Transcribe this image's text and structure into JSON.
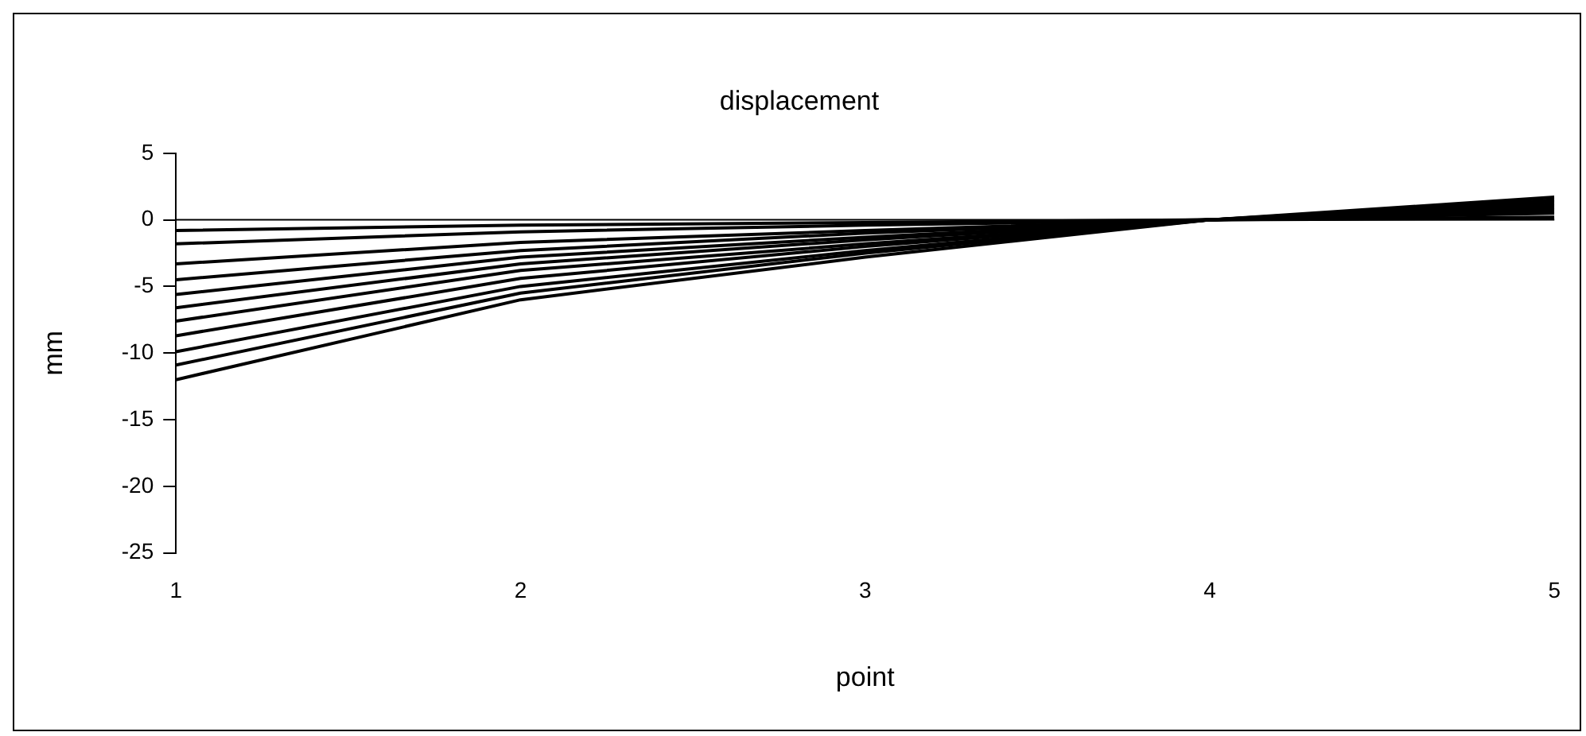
{
  "chart_data": {
    "type": "line",
    "title": "displacement",
    "xlabel": "point",
    "ylabel": "mm",
    "x": [
      1,
      2,
      3,
      4,
      5
    ],
    "xlim": [
      1,
      5
    ],
    "xticks": [
      1,
      2,
      3,
      4,
      5
    ],
    "ylim": [
      -25,
      5
    ],
    "yticks": [
      -25,
      -20,
      -15,
      -10,
      -5,
      0,
      5
    ],
    "grid": false,
    "legend": false,
    "marker": "none",
    "line_style": "solid",
    "ref_lines": [
      {
        "axis": "y",
        "value": 0,
        "color": "#000000"
      }
    ],
    "series": [
      {
        "color": "#000000",
        "values": [
          -0.8,
          -0.4,
          -0.2,
          0,
          0.1
        ]
      },
      {
        "color": "#000000",
        "values": [
          -1.8,
          -0.9,
          -0.4,
          0,
          0.2
        ]
      },
      {
        "color": "#000000",
        "values": [
          -3.3,
          -1.7,
          -0.8,
          0,
          0.5
        ]
      },
      {
        "color": "#000000",
        "values": [
          -4.5,
          -2.3,
          -1.0,
          0,
          0.6
        ]
      },
      {
        "color": "#000000",
        "values": [
          -5.6,
          -2.8,
          -1.3,
          0,
          0.8
        ]
      },
      {
        "color": "#000000",
        "values": [
          -6.6,
          -3.3,
          -1.5,
          0,
          0.9
        ]
      },
      {
        "color": "#000000",
        "values": [
          -7.6,
          -3.8,
          -1.8,
          0,
          1.1
        ]
      },
      {
        "color": "#000000",
        "values": [
          -8.7,
          -4.4,
          -2.0,
          0,
          1.2
        ]
      },
      {
        "color": "#000000",
        "values": [
          -9.9,
          -5.0,
          -2.3,
          0,
          1.4
        ]
      },
      {
        "color": "#000000",
        "values": [
          -10.9,
          -5.5,
          -2.5,
          0,
          1.5
        ]
      },
      {
        "color": "#000000",
        "values": [
          -12.0,
          -6.0,
          -2.8,
          0,
          1.7
        ]
      }
    ]
  }
}
